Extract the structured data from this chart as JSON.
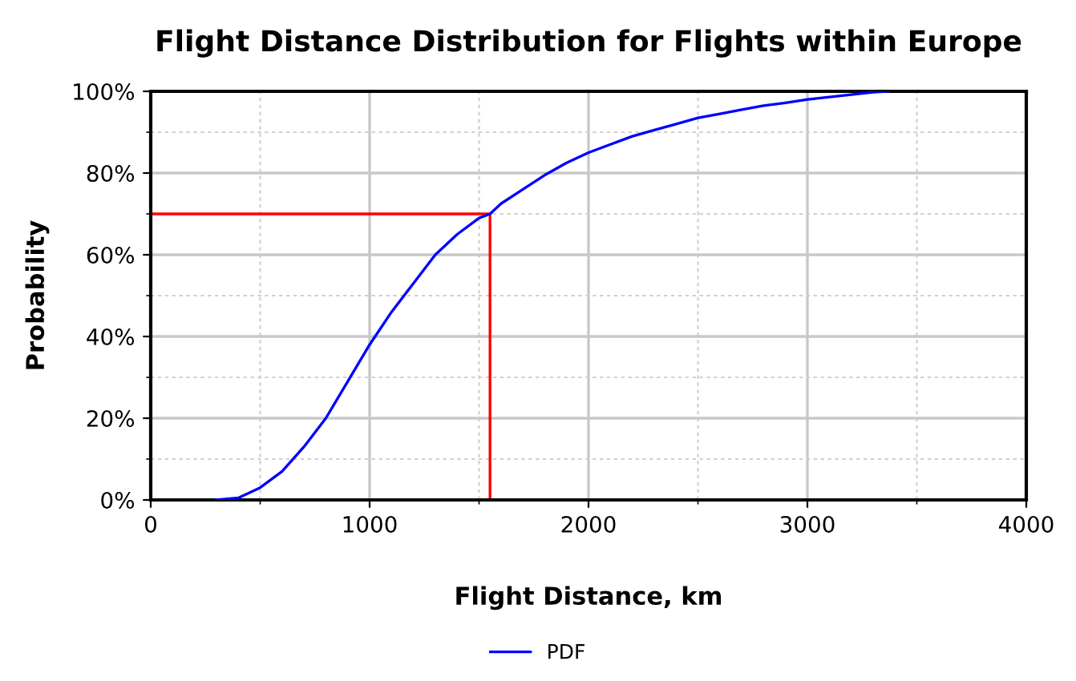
{
  "chart_data": {
    "type": "line",
    "title": "Flight Distance Distribution for Flights within Europe",
    "xlabel": "Flight Distance, km",
    "ylabel": "Probability",
    "series": [
      {
        "name": "PDF",
        "color": "#0000ff",
        "x": [
          300,
          400,
          500,
          600,
          700,
          800,
          900,
          1000,
          1100,
          1200,
          1300,
          1400,
          1500,
          1550,
          1600,
          1700,
          1800,
          1900,
          2000,
          2100,
          2200,
          2300,
          2400,
          2500,
          2600,
          2700,
          2800,
          2900,
          3000,
          3100,
          3200,
          3300,
          3370
        ],
        "values": [
          0,
          0.5,
          3,
          7,
          13,
          20,
          29,
          38,
          46,
          53,
          60,
          65,
          69,
          70,
          72.5,
          76,
          79.5,
          82.5,
          85,
          87,
          89,
          90.5,
          92,
          93.5,
          94.5,
          95.5,
          96.5,
          97.2,
          98,
          98.6,
          99.2,
          99.8,
          100
        ]
      }
    ],
    "xlim": [
      0,
      4000
    ],
    "xticks": [
      0,
      1000,
      2000,
      3000,
      4000
    ],
    "ylim": [
      0,
      100
    ],
    "yticks": [
      {
        "value": 0,
        "label": "0%"
      },
      {
        "value": 20,
        "label": "20%"
      },
      {
        "value": 40,
        "label": "40%"
      },
      {
        "value": 60,
        "label": "60%"
      },
      {
        "value": 80,
        "label": "80%"
      },
      {
        "value": 100,
        "label": "100%"
      }
    ],
    "ref_lines": [
      {
        "axis": "y",
        "value": 70,
        "color": "#ff0000"
      },
      {
        "axis": "x",
        "value": 1550,
        "color": "#ff0000"
      }
    ],
    "grid": true,
    "legend": "bottom",
    "marker": "none",
    "line_style": "solid"
  }
}
